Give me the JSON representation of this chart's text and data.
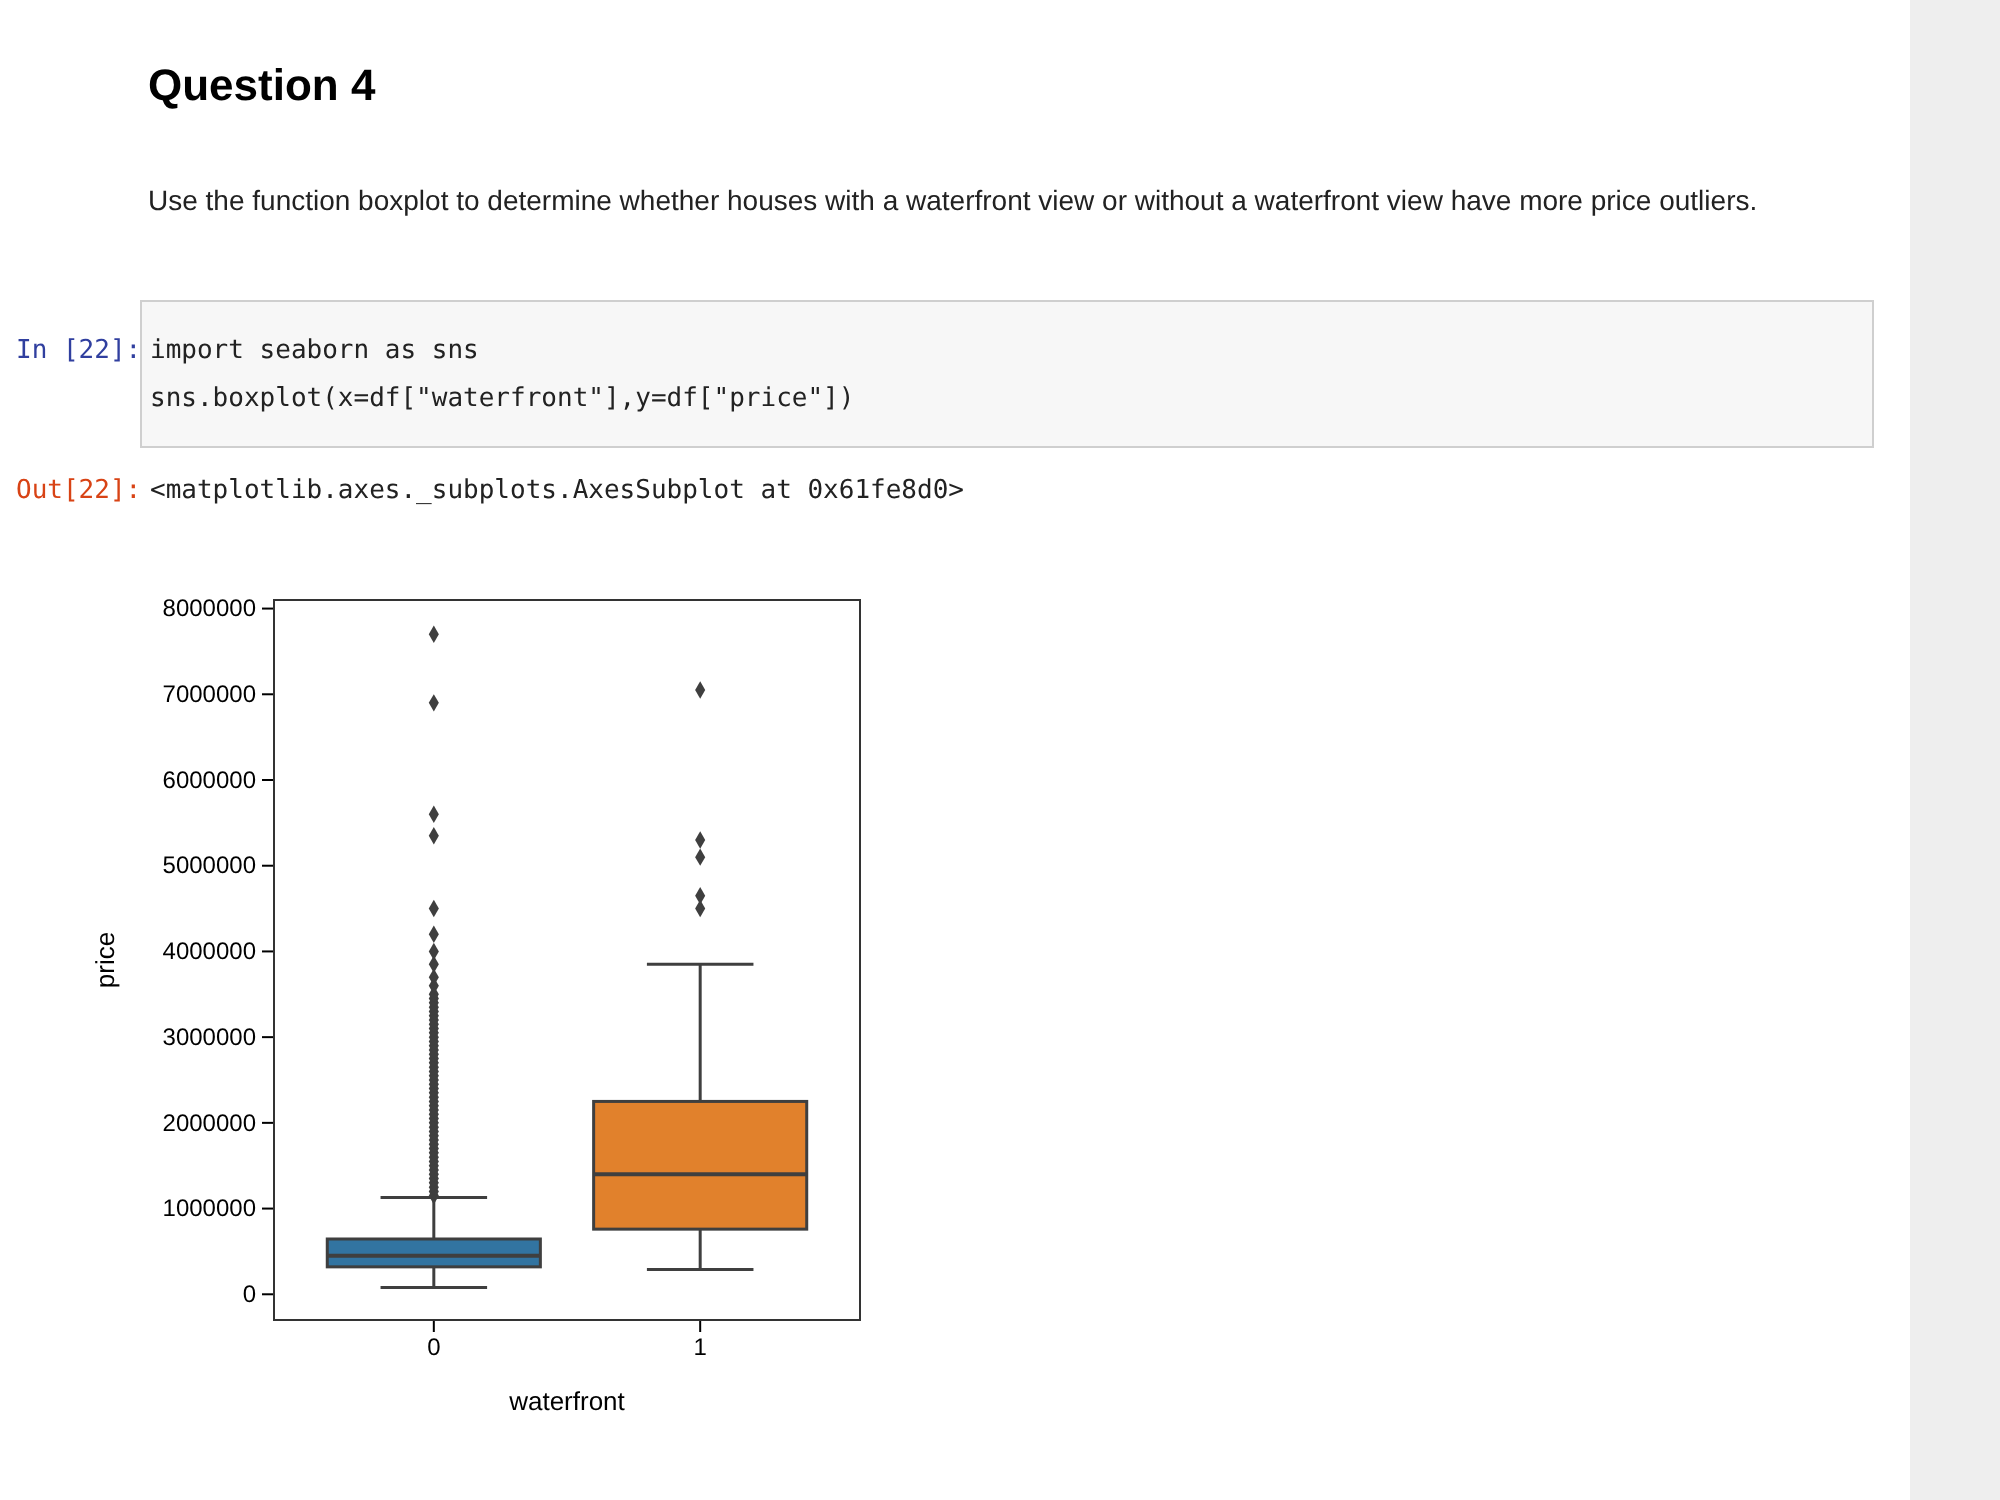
{
  "chart_data": {
    "type": "box",
    "title": "Question 4",
    "subtitle": "Use the function boxplot to determine whether houses with a waterfront view or without a waterfront view have more price outliers.",
    "annotations": [
      "In [22]:",
      "import seaborn as sns",
      "sns.boxplot(x=df[\"waterfront\"],y=df[\"price\"])",
      "Out[22]:",
      "<matplotlib.axes._subplots.AxesSubplot at 0x61fe8d0>"
    ],
    "categories": [
      "0",
      "1"
    ],
    "xlabel": "waterfront",
    "ylabel": "price",
    "colors": [
      "#3274a1",
      "#e1812c"
    ],
    "marker": "diamond",
    "ylim": [
      -300000,
      8100000
    ],
    "yticks": [
      0,
      1000000,
      2000000,
      3000000,
      4000000,
      5000000,
      6000000,
      7000000,
      8000000
    ],
    "boxes": [
      {
        "low": 80000,
        "q1": 320000,
        "median": 450000,
        "q3": 645000,
        "high": 1130000,
        "outliers": [
          1150000,
          1200000,
          1250000,
          1300000,
          1350000,
          1400000,
          1450000,
          1500000,
          1550000,
          1600000,
          1650000,
          1700000,
          1750000,
          1800000,
          1850000,
          1900000,
          1950000,
          2000000,
          2050000,
          2100000,
          2150000,
          2200000,
          2250000,
          2300000,
          2350000,
          2400000,
          2450000,
          2500000,
          2550000,
          2600000,
          2650000,
          2700000,
          2750000,
          2800000,
          2850000,
          2900000,
          2950000,
          3000000,
          3050000,
          3100000,
          3150000,
          3200000,
          3250000,
          3300000,
          3350000,
          3400000,
          3450000,
          3500000,
          3600000,
          3700000,
          3850000,
          4000000,
          4200000,
          4500000,
          5350000,
          5600000,
          6900000,
          7700000
        ]
      },
      {
        "low": 290000,
        "q1": 760000,
        "median": 1400000,
        "q3": 2250000,
        "high": 3850000,
        "outliers": [
          4500000,
          4650000,
          5100000,
          5300000,
          7050000
        ]
      }
    ]
  }
}
